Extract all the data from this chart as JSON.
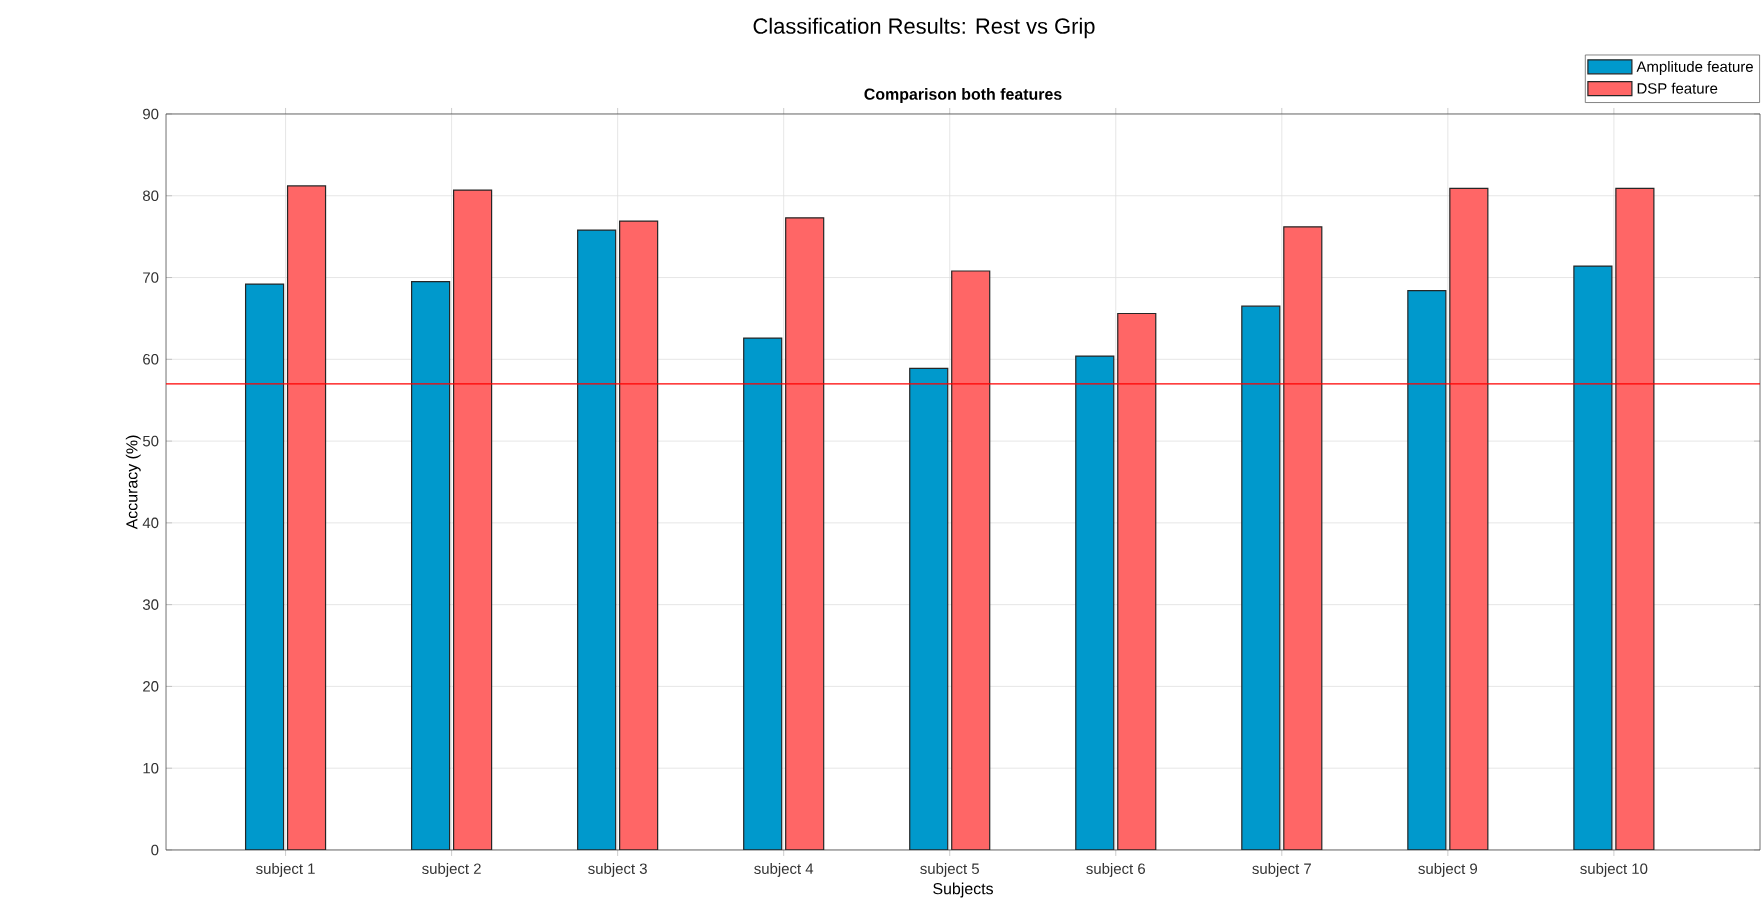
{
  "chart_data": {
    "type": "bar",
    "title": "Classification Results: Rest vs Grip",
    "subtitle": "Comparison both features",
    "xlabel": "Subjects",
    "ylabel": "Accuracy (%)",
    "categories": [
      "subject 1",
      "subject 2",
      "subject 3",
      "subject 4",
      "subject 5",
      "subject 6",
      "subject 7",
      "subject 9",
      "subject 10"
    ],
    "series": [
      {
        "name": "Amplitude feature",
        "color": "#0099cc",
        "values": [
          69.2,
          69.5,
          75.8,
          62.6,
          58.9,
          60.4,
          66.5,
          68.4,
          71.4
        ]
      },
      {
        "name": "DSP feature",
        "color": "#ff6666",
        "values": [
          81.2,
          80.7,
          76.9,
          77.3,
          70.8,
          65.6,
          76.2,
          80.9,
          80.9
        ]
      }
    ],
    "ylim": [
      0,
      90
    ],
    "yticks": [
      0,
      10,
      20,
      30,
      40,
      50,
      60,
      70,
      80,
      90
    ],
    "grid": true,
    "legend": "top right",
    "ref_lines": [
      {
        "axis": "y",
        "value": 57,
        "color": "#ff0000"
      }
    ]
  }
}
